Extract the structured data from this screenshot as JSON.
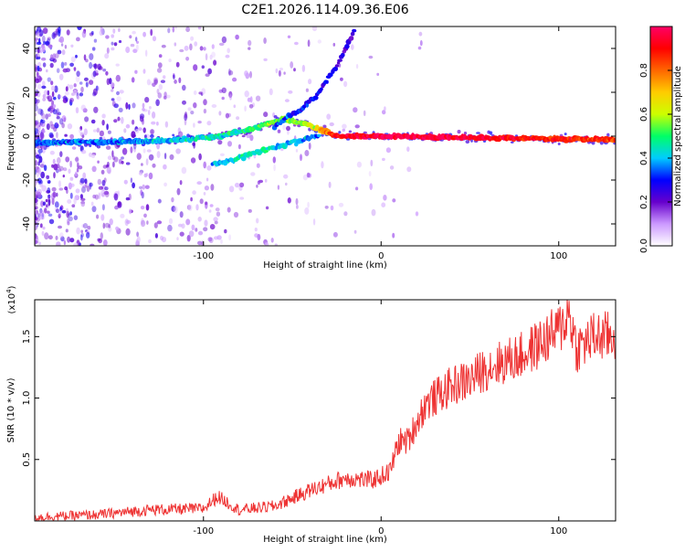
{
  "title": "C2E1.2026.114.09.36.E06",
  "chart_data": [
    {
      "type": "heatmap",
      "name": "spectrogram",
      "title": "C2E1.2026.114.09.36.E06",
      "xlabel": "Height of straight line (km)",
      "ylabel": "Frequency (Hz)",
      "xlim": [
        -195,
        132
      ],
      "ylim": [
        -50,
        50
      ],
      "xticks": [
        -100,
        0,
        100
      ],
      "xtick_labels": [
        "-100",
        "0",
        "100"
      ],
      "yticks": [
        -40,
        -20,
        0,
        20,
        40
      ],
      "ytick_labels": [
        "-40",
        "-20",
        "0",
        "20",
        "40"
      ],
      "ridges": [
        {
          "name": "main-carrier",
          "x": [
            -195,
            -150,
            -120,
            -90,
            -70,
            -55,
            -40,
            -25,
            0,
            40,
            80,
            132
          ],
          "y": [
            -3,
            -2.5,
            -2,
            0,
            4,
            8,
            5,
            0,
            0,
            -0.5,
            -1,
            -1.5
          ],
          "amplitude": [
            0.35,
            0.35,
            0.4,
            0.45,
            0.5,
            0.55,
            0.6,
            0.9,
            1.0,
            0.95,
            0.9,
            0.85
          ]
        },
        {
          "name": "rising-branch",
          "x": [
            -60,
            -45,
            -35,
            -25,
            -15
          ],
          "y": [
            5,
            12,
            20,
            32,
            48
          ],
          "amplitude": [
            0.35,
            0.3,
            0.3,
            0.25,
            0.25
          ]
        },
        {
          "name": "falling-branch",
          "x": [
            -95,
            -80,
            -65,
            -50,
            -35
          ],
          "y": [
            -13,
            -10,
            -6,
            -3,
            0
          ],
          "amplitude": [
            0.35,
            0.45,
            0.45,
            0.4,
            0.35
          ]
        }
      ],
      "colorbar": {
        "label": "Normalized spectral amplitude",
        "range": [
          0,
          1
        ],
        "ticks": [
          0.0,
          0.2,
          0.4,
          0.6,
          0.8
        ],
        "tick_labels": [
          "0.0",
          "0.2",
          "0.4",
          "0.6",
          "0.8"
        ],
        "colors": [
          "#ffffff",
          "#cc99ff",
          "#6600cc",
          "#0000ff",
          "#00ccff",
          "#00ff66",
          "#ccff00",
          "#ffcc00",
          "#ff6600",
          "#ff0000",
          "#ff0066"
        ]
      }
    },
    {
      "type": "line",
      "name": "snr",
      "xlabel": "Height of straight line (km)",
      "ylabel": "SNR (10 * v/v)",
      "scale_label": "(x10",
      "scale_exp": "4",
      "scale_close": ")",
      "xlim": [
        -195,
        132
      ],
      "ylim": [
        0,
        18000
      ],
      "xticks": [
        -100,
        0,
        100
      ],
      "xtick_labels": [
        "-100",
        "0",
        "100"
      ],
      "yticks": [
        5000,
        10000,
        15000
      ],
      "ytick_labels": [
        "0.5",
        "1.0",
        "1.5"
      ],
      "color": "#ee3333",
      "x": [
        -195,
        -160,
        -130,
        -100,
        -92,
        -80,
        -60,
        -40,
        -20,
        -5,
        5,
        10,
        15,
        20,
        25,
        30,
        40,
        50,
        60,
        70,
        80,
        90,
        100,
        106,
        110,
        120,
        132
      ],
      "y": [
        300,
        500,
        900,
        1000,
        2000,
        900,
        1200,
        2500,
        3500,
        3300,
        4000,
        6500,
        6500,
        8000,
        9500,
        10000,
        11000,
        11500,
        12500,
        13000,
        13500,
        14500,
        15500,
        17000,
        14000,
        15000,
        15000
      ]
    }
  ]
}
